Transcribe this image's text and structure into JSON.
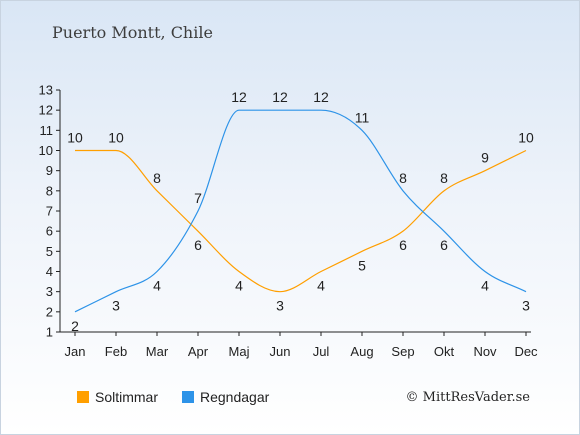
{
  "title": "Puerto Montt, Chile",
  "credit": "© MittResVader.se",
  "chart_data": {
    "type": "line",
    "categories": [
      "Jan",
      "Feb",
      "Mar",
      "Apr",
      "Maj",
      "Jun",
      "Jul",
      "Aug",
      "Sep",
      "Okt",
      "Nov",
      "Dec"
    ],
    "ylim": [
      1,
      13
    ],
    "yticks": [
      1,
      2,
      3,
      4,
      5,
      6,
      7,
      8,
      9,
      10,
      11,
      12,
      13
    ],
    "grid": false,
    "legend_position": "bottom-left",
    "series": [
      {
        "name": "Soltimmar",
        "color": "#ff9f00",
        "values": [
          10,
          10,
          8,
          6,
          4,
          3,
          4,
          5,
          6,
          8,
          9,
          10
        ]
      },
      {
        "name": "Regndagar",
        "color": "#2d93e8",
        "values": [
          2,
          3,
          4,
          7,
          12,
          12,
          12,
          11,
          8,
          6,
          4,
          3
        ]
      }
    ]
  }
}
